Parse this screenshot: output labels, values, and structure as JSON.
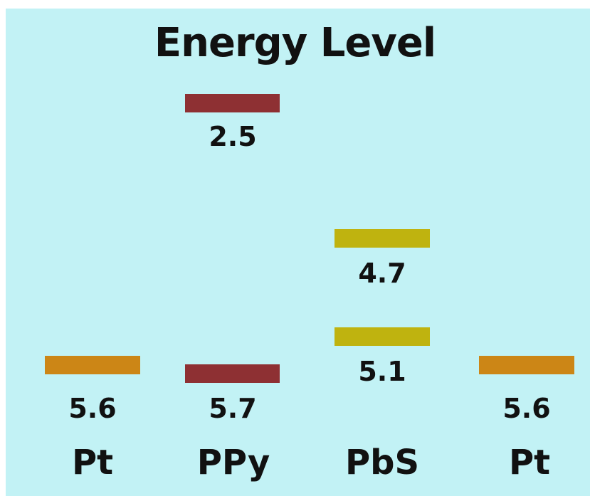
{
  "title": "Energy Level",
  "colors": {
    "background": "#c2f2f5",
    "pt": "#cc8616",
    "ppy": "#8e3033",
    "pbs": "#bfb30f"
  },
  "levels": [
    {
      "material": "Pt",
      "value": "5.6",
      "color": "#cc8616"
    },
    {
      "material": "PPy",
      "value": "2.5",
      "color": "#8e3033"
    },
    {
      "material": "PPy",
      "value": "5.7",
      "color": "#8e3033"
    },
    {
      "material": "PbS",
      "value": "4.7",
      "color": "#bfb30f"
    },
    {
      "material": "PbS",
      "value": "5.1",
      "color": "#bfb30f"
    },
    {
      "material": "Pt",
      "value": "5.6",
      "color": "#cc8616"
    }
  ],
  "materials": [
    "Pt",
    "PPy",
    "PbS",
    "Pt"
  ]
}
